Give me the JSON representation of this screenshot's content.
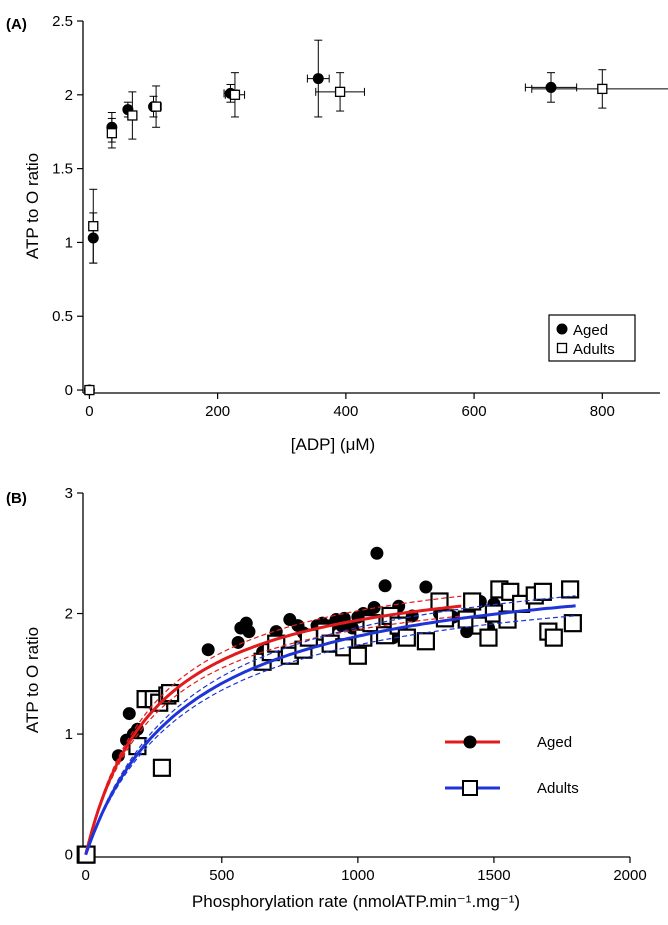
{
  "chart_data": [
    {
      "type": "scatter",
      "panel_label": "(A)",
      "xlabel": "[ADP] (μM)",
      "ylabel": "ATP to O ratio",
      "xlim": [
        -10,
        890
      ],
      "ylim": [
        -0.02,
        2.5
      ],
      "xticks": [
        0,
        200,
        400,
        600,
        800
      ],
      "yticks": [
        0,
        0.5,
        1,
        1.5,
        2,
        2.5
      ],
      "legend": {
        "position": "bottom-right"
      },
      "series": [
        {
          "name": "Aged",
          "marker": "filled-circle",
          "color": "#000000",
          "points": [
            {
              "x": 0,
              "y": 0,
              "xerr": 0,
              "yerr": 0
            },
            {
              "x": 6,
              "y": 1.03,
              "xerr": 0,
              "yerr": 0.17
            },
            {
              "x": 35,
              "y": 1.78,
              "xerr": 0,
              "yerr": 0.1
            },
            {
              "x": 60,
              "y": 1.9,
              "xerr": 0,
              "yerr": 0.05
            },
            {
              "x": 100,
              "y": 1.92,
              "xerr": 0,
              "yerr": 0.07
            },
            {
              "x": 220,
              "y": 2.01,
              "xerr": 10,
              "yerr": 0.06
            },
            {
              "x": 357,
              "y": 2.11,
              "xerr": 17,
              "yerr": 0.26
            },
            {
              "x": 720,
              "y": 2.05,
              "xerr": 40,
              "yerr": 0.1
            }
          ]
        },
        {
          "name": "Adults",
          "marker": "open-square",
          "color": "#000000",
          "points": [
            {
              "x": 0,
              "y": 0,
              "xerr": 0,
              "yerr": 0
            },
            {
              "x": 6,
              "y": 1.11,
              "xerr": 0,
              "yerr": 0.25
            },
            {
              "x": 35,
              "y": 1.74,
              "xerr": 0,
              "yerr": 0.1
            },
            {
              "x": 67,
              "y": 1.86,
              "xerr": 0,
              "yerr": 0.16
            },
            {
              "x": 104,
              "y": 1.92,
              "xerr": 8,
              "yerr": 0.14
            },
            {
              "x": 227,
              "y": 2.0,
              "xerr": 15,
              "yerr": 0.15
            },
            {
              "x": 391,
              "y": 2.02,
              "xerr": 38,
              "yerr": 0.13
            },
            {
              "x": 800,
              "y": 2.04,
              "xerr": 110,
              "yerr": 0.13
            }
          ]
        }
      ]
    },
    {
      "type": "scatter",
      "panel_label": "(B)",
      "xlabel": "Phosphorylation rate (nmolATP.min⁻¹.mg⁻¹)",
      "ylabel": "ATP to O ratio",
      "xlim": [
        -10,
        2000
      ],
      "ylim": [
        -0.02,
        3
      ],
      "xticks": [
        0,
        500,
        1000,
        1500,
        2000
      ],
      "yticks": [
        0,
        1,
        2,
        3
      ],
      "legend": {
        "position": "lower-right"
      },
      "series": [
        {
          "name": "Aged",
          "marker": "filled-circle",
          "color": "#e31a1c",
          "fit": {
            "vmax": 2.45,
            "km": 260,
            "x_max": 1380,
            "band": 0.04
          },
          "points": [
            [
              0,
              0
            ],
            [
              3,
              0
            ],
            [
              5,
              0
            ],
            [
              0,
              0.02
            ],
            [
              120,
              0.82
            ],
            [
              150,
              0.95
            ],
            [
              160,
              1.17
            ],
            [
              175,
              1.0
            ],
            [
              190,
              1.04
            ],
            [
              450,
              1.7
            ],
            [
              560,
              1.76
            ],
            [
              570,
              1.88
            ],
            [
              590,
              1.92
            ],
            [
              600,
              1.85
            ],
            [
              650,
              1.68
            ],
            [
              700,
              1.85
            ],
            [
              750,
              1.95
            ],
            [
              780,
              1.9
            ],
            [
              800,
              1.84
            ],
            [
              850,
              1.9
            ],
            [
              870,
              1.92
            ],
            [
              880,
              1.85
            ],
            [
              900,
              1.9
            ],
            [
              920,
              1.95
            ],
            [
              940,
              1.9
            ],
            [
              950,
              1.96
            ],
            [
              980,
              1.88
            ],
            [
              1000,
              1.97
            ],
            [
              1020,
              2.0
            ],
            [
              1040,
              1.96
            ],
            [
              1060,
              2.05
            ],
            [
              1070,
              2.5
            ],
            [
              1100,
              2.23
            ],
            [
              1110,
              2.0
            ],
            [
              1130,
              1.8
            ],
            [
              1150,
              2.06
            ],
            [
              1200,
              1.98
            ],
            [
              1250,
              2.22
            ],
            [
              1300,
              2.0
            ],
            [
              1350,
              1.97
            ],
            [
              1400,
              1.85
            ],
            [
              1450,
              2.1
            ],
            [
              1480,
              1.88
            ],
            [
              1500,
              2.08
            ]
          ]
        },
        {
          "name": "Adults",
          "marker": "open-square",
          "color": "#1f34d6",
          "fit": {
            "vmax": 2.5,
            "km": 380,
            "x_max": 1800,
            "band": 0.04
          },
          "points": [
            [
              0,
              0
            ],
            [
              3,
              0
            ],
            [
              220,
              1.29
            ],
            [
              250,
              1.29
            ],
            [
              270,
              1.26
            ],
            [
              280,
              0.72
            ],
            [
              300,
              1.32
            ],
            [
              310,
              1.34
            ],
            [
              190,
              0.9
            ],
            [
              650,
              1.6
            ],
            [
              680,
              1.68
            ],
            [
              700,
              1.75
            ],
            [
              750,
              1.65
            ],
            [
              800,
              1.7
            ],
            [
              820,
              1.8
            ],
            [
              880,
              1.85
            ],
            [
              900,
              1.75
            ],
            [
              950,
              1.72
            ],
            [
              1000,
              1.65
            ],
            [
              1020,
              1.8
            ],
            [
              1050,
              1.92
            ],
            [
              1100,
              1.82
            ],
            [
              1120,
              1.98
            ],
            [
              1150,
              1.9
            ],
            [
              1180,
              1.8
            ],
            [
              1250,
              1.77
            ],
            [
              1300,
              2.1
            ],
            [
              1320,
              1.96
            ],
            [
              1400,
              1.95
            ],
            [
              1420,
              2.1
            ],
            [
              1450,
              1.9
            ],
            [
              1480,
              1.8
            ],
            [
              1500,
              2.0
            ],
            [
              1520,
              2.2
            ],
            [
              1550,
              1.95
            ],
            [
              1560,
              2.18
            ],
            [
              1600,
              2.08
            ],
            [
              1650,
              2.15
            ],
            [
              1680,
              2.18
            ],
            [
              1700,
              1.85
            ],
            [
              1720,
              1.8
            ],
            [
              1780,
              2.2
            ],
            [
              1790,
              1.92
            ]
          ]
        }
      ]
    }
  ]
}
